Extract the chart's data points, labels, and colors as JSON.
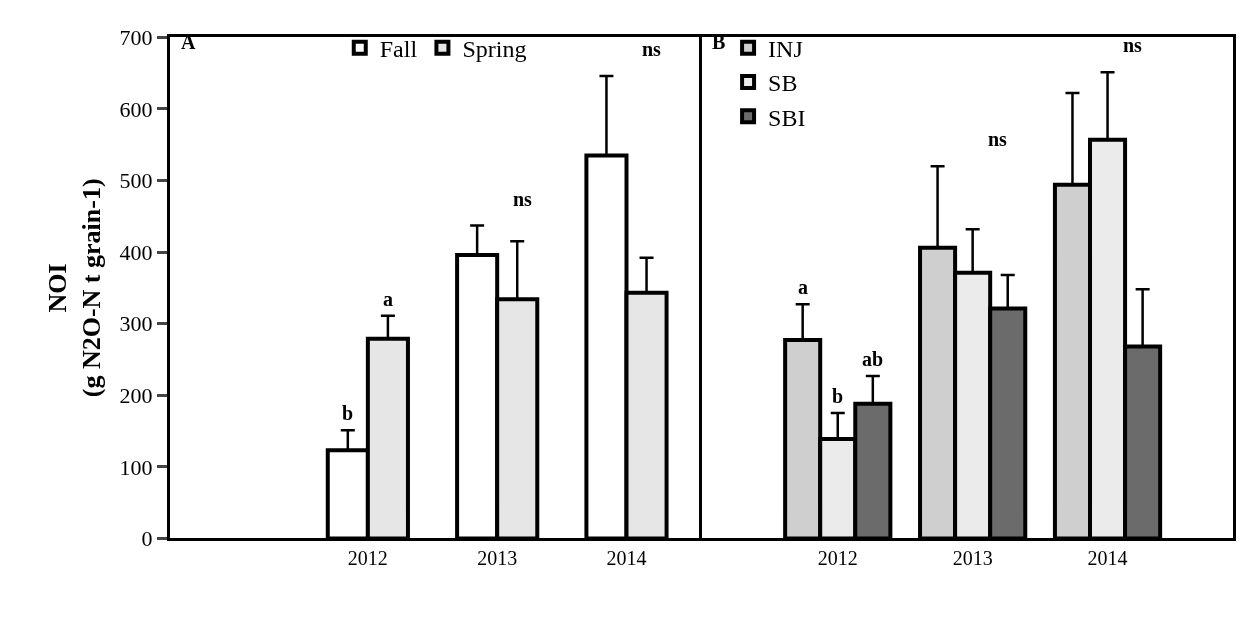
{
  "chart_data": [
    {
      "type": "bar",
      "ylabel": "NOI\n(g N2O-N t grain-1)",
      "categories": [
        "2012",
        "2013",
        "2014"
      ],
      "ylim": [
        0,
        700
      ],
      "yticks": [
        0,
        100,
        200,
        300,
        400,
        500,
        600,
        700
      ],
      "grid": false,
      "legend": "top",
      "series": [
        {
          "name": "Fall",
          "color": "#ffffff",
          "values": [
            123,
            396,
            535
          ],
          "errors": [
            28,
            41,
            111
          ],
          "value_labels": [
            "b",
            null,
            null
          ]
        },
        {
          "name": "Spring",
          "color": "#e6e6e6",
          "values": [
            279,
            334,
            343
          ],
          "errors": [
            32,
            81,
            49
          ],
          "value_labels": [
            "a",
            null,
            null
          ]
        }
      ],
      "annotations": [
        "A",
        "ns",
        "ns"
      ]
    },
    {
      "type": "bar",
      "categories": [
        "2012",
        "2013",
        "2014"
      ],
      "ylim": [
        0,
        700
      ],
      "tick_labels": "x",
      "grid": false,
      "legend": "top left",
      "series": [
        {
          "name": "INJ",
          "color": "#cfcfcf",
          "values": [
            277,
            406,
            494
          ],
          "errors": [
            50,
            114,
            128
          ],
          "value_labels": [
            "a",
            null,
            null
          ]
        },
        {
          "name": "SB",
          "color": "#ebebeb",
          "values": [
            139,
            371,
            557
          ],
          "errors": [
            36,
            61,
            94
          ],
          "value_labels": [
            "b",
            null,
            null
          ]
        },
        {
          "name": "SBI",
          "color": "#6b6b6b",
          "values": [
            188,
            321,
            268
          ],
          "errors": [
            39,
            47,
            80
          ],
          "value_labels": [
            "ab",
            null,
            null
          ]
        }
      ],
      "annotations": [
        "B",
        "ns",
        "ns"
      ]
    }
  ]
}
